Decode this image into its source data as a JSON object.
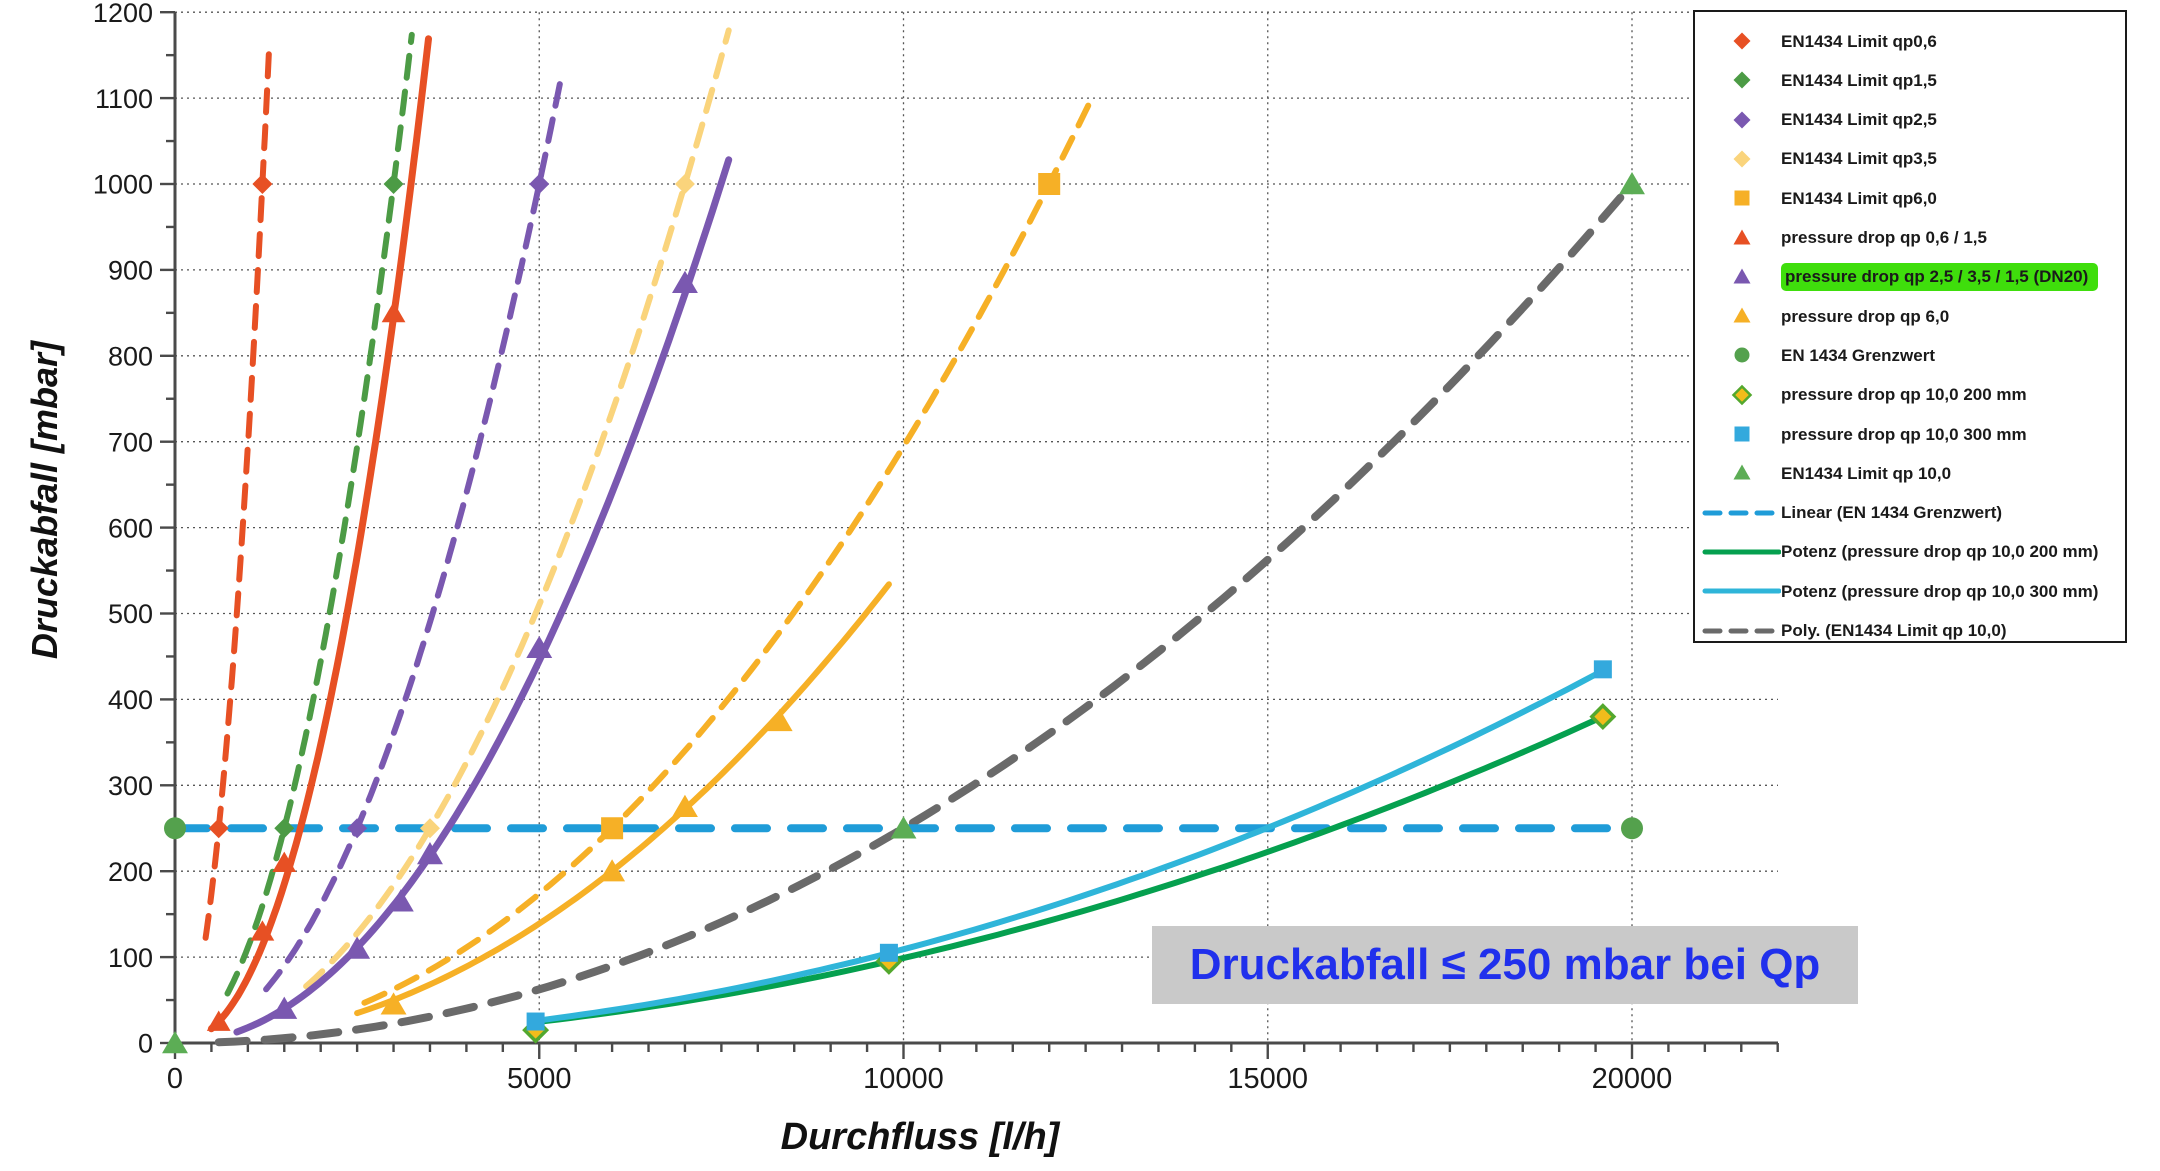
{
  "annotation": {
    "text": "Druckabfall ≤ 250 mbar bei Qp"
  },
  "chart_data": {
    "type": "scatter",
    "title": "",
    "xlabel": "Durchfluss [l/h]",
    "ylabel": "Druckabfall [mbar]",
    "xlim": [
      0,
      22000
    ],
    "ylim": [
      0,
      1200
    ],
    "x_ticks": [
      0,
      5000,
      10000,
      15000,
      20000
    ],
    "x_minor_step": 500,
    "y_major_step": 100,
    "y_minor_step": 50,
    "grid": true,
    "legend_position": "top-right",
    "colors": {
      "grid": "#555555",
      "axis": "#4a4a4a",
      "tick_label": "#1a1a1a",
      "annotation_text": "#2030EC",
      "annotation_bg": "#C9C9C9",
      "highlight": "#3FDE0C"
    },
    "series": [
      {
        "name": "EN1434 Limit qp0,6",
        "color": "#E75024",
        "marker": "diamond",
        "marker_size": 10,
        "line": "dashed",
        "line_width": 6,
        "dash": "22 14",
        "points": [
          [
            600,
            250
          ],
          [
            1200,
            1000
          ]
        ],
        "curve": {
          "type": "power",
          "a": 0.000694444,
          "b": 2,
          "range": [
            420,
            1290
          ]
        }
      },
      {
        "name": "EN1434 Limit qp1,5",
        "color": "#4C9B45",
        "marker": "diamond",
        "marker_size": 10,
        "line": "dashed",
        "line_width": 6,
        "dash": "22 14",
        "points": [
          [
            1500,
            250
          ],
          [
            3000,
            1000
          ]
        ],
        "curve": {
          "type": "power",
          "a": 0.000111111,
          "b": 2,
          "range": [
            720,
            3250
          ]
        }
      },
      {
        "name": "EN1434 Limit qp2,5",
        "color": "#7A58B0",
        "marker": "diamond",
        "marker_size": 10,
        "line": "dashed",
        "line_width": 6,
        "dash": "22 14",
        "points": [
          [
            2500,
            250
          ],
          [
            5000,
            1000
          ]
        ],
        "curve": {
          "type": "power",
          "a": 4e-05,
          "b": 2,
          "range": [
            1250,
            5300
          ]
        }
      },
      {
        "name": "EN1434 Limit qp3,5",
        "color": "#FAD47C",
        "marker": "diamond",
        "marker_size": 10,
        "line": "dashed",
        "line_width": 6,
        "dash": "22 14",
        "points": [
          [
            3500,
            250
          ],
          [
            7000,
            1000
          ]
        ],
        "curve": {
          "type": "power",
          "a": 2.04082e-05,
          "b": 2,
          "range": [
            1800,
            7600
          ]
        }
      },
      {
        "name": "EN1434 Limit qp6,0",
        "color": "#F6B026",
        "marker": "square",
        "marker_size": 11,
        "line": "dashed",
        "line_width": 6,
        "dash": "22 14",
        "points": [
          [
            6000,
            250
          ],
          [
            12000,
            1000
          ]
        ],
        "curve": {
          "type": "power",
          "a": 6.94444e-06,
          "b": 2,
          "range": [
            2600,
            12600
          ]
        }
      },
      {
        "name": "pressure drop qp 0,6 / 1,5",
        "color": "#E75024",
        "marker": "triangle",
        "marker_size": 11,
        "line": "solid",
        "line_width": 7,
        "points": [
          [
            600,
            25
          ],
          [
            1200,
            130
          ],
          [
            1500,
            210
          ],
          [
            3000,
            850
          ]
        ],
        "curve": {
          "type": "power",
          "a": 2.05e-05,
          "b": 2.19,
          "range": [
            500,
            3480
          ]
        }
      },
      {
        "name": "pressure drop qp 2,5 / 3,5 / 1,5 (DN20)",
        "color": "#7A58B0",
        "marker": "triangle",
        "marker_size": 12,
        "line": "solid",
        "line_width": 7,
        "points": [
          [
            1500,
            40
          ],
          [
            2500,
            110
          ],
          [
            3100,
            165
          ],
          [
            3500,
            220
          ],
          [
            5000,
            460
          ],
          [
            7000,
            885
          ]
        ],
        "curve": {
          "type": "power",
          "a": 1.78e-05,
          "b": 2,
          "range": [
            850,
            7600
          ]
        },
        "highlight": true
      },
      {
        "name": "pressure drop qp 6,0",
        "color": "#F6B026",
        "marker": "triangle",
        "marker_size": 12,
        "line": "solid",
        "line_width": 6,
        "points": [
          [
            3000,
            45
          ],
          [
            6000,
            200
          ],
          [
            7000,
            275
          ],
          [
            8300,
            375
          ]
        ],
        "curve": {
          "type": "power",
          "a": 5.56e-06,
          "b": 2,
          "range": [
            2500,
            9800
          ]
        }
      },
      {
        "name": "EN 1434 Grenzwert",
        "color": "#54A14D",
        "marker": "circle",
        "marker_size": 11,
        "line": "none",
        "points": [
          [
            0,
            250
          ],
          [
            20000,
            250
          ]
        ]
      },
      {
        "name": "pressure drop qp 10,0 200 mm",
        "color": "#F2BC1B",
        "stroke": "#53A82E",
        "marker": "diamond-open",
        "marker_size": 11,
        "line": "none",
        "points": [
          [
            4950,
            15
          ],
          [
            9800,
            95
          ],
          [
            19600,
            380
          ]
        ]
      },
      {
        "name": "pressure drop qp 10,0 300 mm",
        "color": "#33A9DD",
        "marker": "square",
        "marker_size": 9,
        "line": "none",
        "points": [
          [
            4950,
            25
          ],
          [
            9800,
            105
          ],
          [
            19600,
            435
          ]
        ]
      },
      {
        "name": "EN1434 Limit qp 10,0",
        "color": "#5CAD55",
        "marker": "triangle",
        "marker_size": 12,
        "line": "none",
        "points": [
          [
            0,
            0
          ],
          [
            10000,
            250
          ],
          [
            20000,
            1000
          ]
        ]
      },
      {
        "name": "Linear (EN 1434 Grenzwert)",
        "color": "#1F9CD8",
        "marker": "none",
        "line": "dashed",
        "line_width": 8,
        "dash": "32 24",
        "curve": {
          "type": "hline",
          "y": 250,
          "range": [
            0,
            20000
          ]
        }
      },
      {
        "name": "Potenz (pressure drop qp 10,0 200 mm)",
        "color": "#05A04F",
        "marker": "none",
        "line": "solid",
        "line_width": 6,
        "curve": {
          "type": "power",
          "a": 9.89e-07,
          "b": 2,
          "range": [
            4950,
            19600
          ]
        }
      },
      {
        "name": "Potenz (pressure drop qp 10,0 300 mm)",
        "color": "#2FB5D9",
        "marker": "none",
        "line": "solid",
        "line_width": 6,
        "curve": {
          "type": "power",
          "a": 6.885e-07,
          "b": 2.05,
          "range": [
            4950,
            19600
          ]
        }
      },
      {
        "name": "Poly. (EN1434 Limit qp 10,0)",
        "color": "#6A6A6A",
        "marker": "none",
        "line": "dashed",
        "line_width": 8,
        "dash": "28 18",
        "curve": {
          "type": "power",
          "a": 2.5e-06,
          "b": 2,
          "range": [
            600,
            20000
          ]
        }
      }
    ],
    "line_draw_order": [
      0,
      1,
      2,
      3,
      4,
      15,
      12,
      13,
      14,
      5,
      6,
      7
    ],
    "marker_draw_order": [
      0,
      1,
      2,
      3,
      4,
      5,
      6,
      7,
      8,
      9,
      10,
      11
    ]
  }
}
